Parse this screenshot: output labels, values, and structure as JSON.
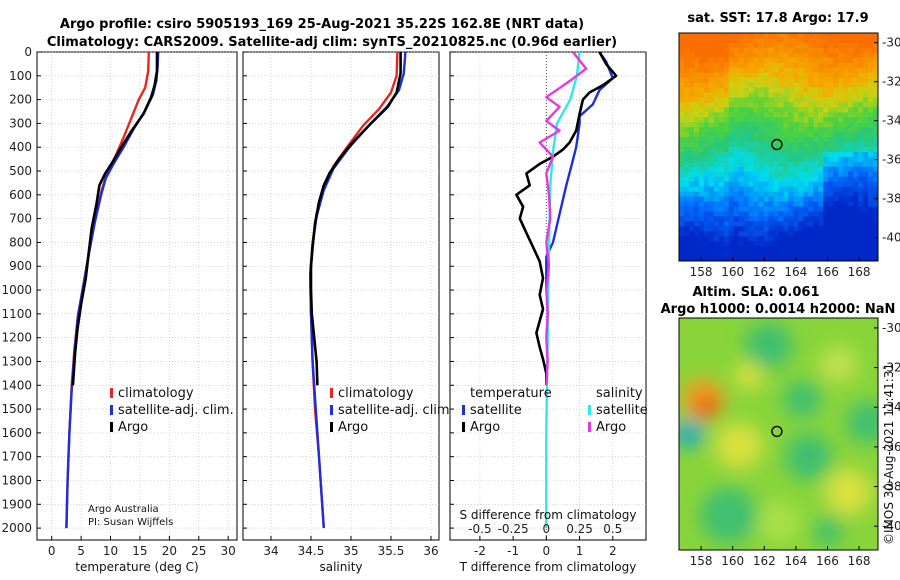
{
  "title_line1": "Argo profile: csiro 5905193_169 25-Aug-2021 35.22S 162.8E (NRT data)",
  "title_line2": "Climatology: CARS2009. Satellite-adj clim: synTS_20210825.nc (0.96d earlier)",
  "colors": {
    "climatology": "#e8251f",
    "satellite": "#1c2fd8",
    "argo": "#000000",
    "cyan": "#2ee8e8",
    "magenta": "#e637e0",
    "grid": "#bbbbbb"
  },
  "depth_axis": {
    "ylim": [
      0,
      2050
    ],
    "ticks": [
      0,
      100,
      200,
      300,
      400,
      500,
      600,
      700,
      800,
      900,
      1000,
      1100,
      1200,
      1300,
      1400,
      1500,
      1600,
      1700,
      1800,
      1900,
      2000
    ]
  },
  "legend": {
    "climatology": "climatology",
    "satellite": "satellite-adj. clim.",
    "argo": "Argo"
  },
  "credit": {
    "line1": "Argo Australia",
    "line2": "PI: Susan Wijffels"
  },
  "diff_legend": {
    "temperature_header": "temperature",
    "salinity_header": "salinity",
    "satellite": "satellite",
    "argo": "Argo",
    "s_diff_label": "S difference from climatology"
  },
  "chart_data": [
    {
      "type": "line",
      "id": "temperature",
      "xlabel": "temperature (deg C)",
      "xlim": [
        -2.5,
        31.5
      ],
      "xticks": [
        0,
        5,
        10,
        15,
        20,
        25,
        30
      ],
      "series": [
        {
          "name": "climatology",
          "color": "red",
          "points": [
            [
              16.5,
              0
            ],
            [
              16.4,
              80
            ],
            [
              15.9,
              150
            ],
            [
              14.8,
              200
            ],
            [
              13.5,
              280
            ],
            [
              12.2,
              360
            ],
            [
              10.8,
              440
            ],
            [
              9.4,
              510
            ],
            [
              8.5,
              580
            ],
            [
              7.4,
              700
            ],
            [
              6.4,
              830
            ],
            [
              5.5,
              960
            ],
            [
              4.5,
              1100
            ],
            [
              3.9,
              1240
            ],
            [
              3.4,
              1400
            ],
            [
              3.0,
              1600
            ],
            [
              2.7,
              1800
            ],
            [
              2.5,
              2000
            ]
          ]
        },
        {
          "name": "satellite-adj. clim.",
          "color": "blue",
          "points": [
            [
              18.1,
              0
            ],
            [
              18.0,
              60
            ],
            [
              17.8,
              120
            ],
            [
              17.2,
              180
            ],
            [
              15.8,
              250
            ],
            [
              14.0,
              320
            ],
            [
              12.2,
              400
            ],
            [
              10.5,
              470
            ],
            [
              9.2,
              530
            ],
            [
              8.4,
              600
            ],
            [
              7.3,
              720
            ],
            [
              6.3,
              850
            ],
            [
              5.4,
              980
            ],
            [
              4.4,
              1120
            ],
            [
              3.9,
              1260
            ],
            [
              3.4,
              1420
            ],
            [
              3.0,
              1600
            ],
            [
              2.7,
              1800
            ],
            [
              2.5,
              2000
            ]
          ]
        },
        {
          "name": "Argo",
          "color": "black",
          "points": [
            [
              17.9,
              0
            ],
            [
              17.9,
              80
            ],
            [
              17.5,
              140
            ],
            [
              16.9,
              190
            ],
            [
              15.6,
              260
            ],
            [
              13.6,
              330
            ],
            [
              11.6,
              410
            ],
            [
              10.4,
              460
            ],
            [
              9.1,
              510
            ],
            [
              8.1,
              560
            ],
            [
              7.6,
              640
            ],
            [
              6.8,
              740
            ],
            [
              6.3,
              840
            ],
            [
              5.8,
              950
            ],
            [
              5.0,
              1060
            ],
            [
              4.4,
              1160
            ],
            [
              4.0,
              1260
            ],
            [
              3.6,
              1400
            ]
          ]
        }
      ]
    },
    {
      "type": "line",
      "id": "salinity",
      "xlabel": "salinity",
      "xlim": [
        33.65,
        36.1
      ],
      "xticks": [
        34,
        34.5,
        35,
        35.5,
        36
      ],
      "series": [
        {
          "name": "climatology",
          "color": "red",
          "points": [
            [
              35.58,
              0
            ],
            [
              35.57,
              100
            ],
            [
              35.5,
              170
            ],
            [
              35.35,
              240
            ],
            [
              35.15,
              310
            ],
            [
              34.95,
              400
            ],
            [
              34.78,
              480
            ],
            [
              34.66,
              570
            ],
            [
              34.57,
              680
            ],
            [
              34.52,
              800
            ],
            [
              34.49,
              930
            ],
            [
              34.5,
              1100
            ],
            [
              34.52,
              1300
            ],
            [
              34.55,
              1500
            ],
            [
              34.6,
              1700
            ],
            [
              34.63,
              1850
            ],
            [
              34.66,
              2000
            ]
          ]
        },
        {
          "name": "satellite-adj. clim.",
          "color": "blue",
          "points": [
            [
              35.68,
              0
            ],
            [
              35.66,
              90
            ],
            [
              35.6,
              160
            ],
            [
              35.45,
              230
            ],
            [
              35.22,
              310
            ],
            [
              34.98,
              400
            ],
            [
              34.78,
              490
            ],
            [
              34.66,
              580
            ],
            [
              34.57,
              690
            ],
            [
              34.52,
              810
            ],
            [
              34.49,
              940
            ],
            [
              34.5,
              1100
            ],
            [
              34.52,
              1300
            ],
            [
              34.56,
              1500
            ],
            [
              34.6,
              1700
            ],
            [
              34.63,
              1850
            ],
            [
              34.66,
              2000
            ]
          ]
        },
        {
          "name": "Argo",
          "color": "black",
          "points": [
            [
              35.62,
              0
            ],
            [
              35.62,
              90
            ],
            [
              35.57,
              170
            ],
            [
              35.46,
              230
            ],
            [
              35.25,
              300
            ],
            [
              35.02,
              380
            ],
            [
              34.85,
              450
            ],
            [
              34.73,
              510
            ],
            [
              34.66,
              560
            ],
            [
              34.6,
              630
            ],
            [
              34.55,
              720
            ],
            [
              34.52,
              820
            ],
            [
              34.5,
              900
            ],
            [
              34.5,
              1000
            ],
            [
              34.51,
              1100
            ],
            [
              34.54,
              1200
            ],
            [
              34.57,
              1300
            ],
            [
              34.58,
              1400
            ]
          ]
        }
      ]
    },
    {
      "type": "line",
      "id": "difference",
      "xlabel": "T difference from climatology",
      "xlim": [
        -2.9,
        3.0
      ],
      "xticks": [
        -2,
        -1,
        0,
        1,
        2
      ],
      "s_ticks": [
        {
          "label": "-0.5",
          "value": -0.5
        },
        {
          "label": "-0.25",
          "value": -0.25
        },
        {
          "label": "0",
          "value": 0
        },
        {
          "label": "0.25",
          "value": 0.25
        },
        {
          "label": "0.5",
          "value": 0.5
        }
      ],
      "s_scale": 4,
      "series": [
        {
          "name": "temperature satellite",
          "color": "blue",
          "points": [
            [
              1.6,
              0
            ],
            [
              1.8,
              40
            ],
            [
              2.0,
              110
            ],
            [
              1.6,
              160
            ],
            [
              1.4,
              220
            ],
            [
              1.0,
              270
            ],
            [
              1.0,
              300
            ],
            [
              0.9,
              400
            ],
            [
              0.75,
              480
            ],
            [
              0.6,
              560
            ],
            [
              0.4,
              680
            ],
            [
              0.2,
              800
            ],
            [
              0.0,
              860
            ],
            [
              0.0,
              1000
            ]
          ]
        },
        {
          "name": "temperature Argo",
          "color": "black",
          "points": [
            [
              1.6,
              0
            ],
            [
              1.8,
              50
            ],
            [
              2.1,
              100
            ],
            [
              1.7,
              140
            ],
            [
              1.3,
              170
            ],
            [
              1.1,
              200
            ],
            [
              1.0,
              260
            ],
            [
              0.9,
              330
            ],
            [
              0.7,
              380
            ],
            [
              0.5,
              410
            ],
            [
              0.2,
              440
            ],
            [
              -0.2,
              470
            ],
            [
              -0.6,
              510
            ],
            [
              -0.5,
              560
            ],
            [
              -0.9,
              600
            ],
            [
              -0.7,
              650
            ],
            [
              -0.8,
              700
            ],
            [
              -0.6,
              760
            ],
            [
              -0.4,
              820
            ],
            [
              -0.2,
              880
            ],
            [
              -0.1,
              950
            ],
            [
              -0.2,
              1020
            ],
            [
              -0.1,
              1080
            ],
            [
              -0.2,
              1130
            ],
            [
              -0.3,
              1180
            ],
            [
              -0.2,
              1240
            ],
            [
              -0.1,
              1290
            ],
            [
              0.0,
              1350
            ],
            [
              0.0,
              1400
            ]
          ]
        },
        {
          "name": "salinity satellite",
          "color": "cyan",
          "points": [
            [
              0.25,
              0
            ],
            [
              0.23,
              100
            ],
            [
              0.18,
              200
            ],
            [
              0.08,
              300
            ],
            [
              0.05,
              420
            ],
            [
              0.03,
              560
            ],
            [
              0.02,
              800
            ],
            [
              0.01,
              1200
            ],
            [
              0.0,
              1600
            ],
            [
              0.0,
              2000
            ]
          ]
        },
        {
          "name": "salinity Argo",
          "color": "magenta",
          "points": [
            [
              0.2,
              0
            ],
            [
              0.3,
              70
            ],
            [
              0.18,
              120
            ],
            [
              0.0,
              190
            ],
            [
              0.1,
              230
            ],
            [
              0.0,
              290
            ],
            [
              0.1,
              330
            ],
            [
              -0.05,
              380
            ],
            [
              0.05,
              440
            ],
            [
              0.0,
              510
            ],
            [
              0.02,
              600
            ],
            [
              0.03,
              700
            ],
            [
              0.0,
              800
            ],
            [
              0.02,
              900
            ],
            [
              0.0,
              1000
            ],
            [
              0.01,
              1100
            ],
            [
              0.0,
              1200
            ],
            [
              0.01,
              1300
            ],
            [
              0.0,
              1400
            ]
          ]
        }
      ]
    },
    {
      "type": "heatmap",
      "id": "sst-map",
      "title": "sat. SST: 17.8 Argo: 17.9",
      "xlim": [
        156.6,
        169.2
      ],
      "ylim": [
        -41.2,
        -29.5
      ],
      "xticks": [
        158,
        160,
        162,
        164,
        166,
        168
      ],
      "yticks": [
        -30,
        -32,
        -34,
        -36,
        -38,
        -40
      ],
      "marker": [
        162.8,
        -35.22
      ]
    },
    {
      "type": "heatmap",
      "id": "sla-map",
      "title": "Altim. SLA: 0.061",
      "subtitle": "Argo h1000: 0.0014 h2000: NaN",
      "xlim": [
        156.6,
        169.2
      ],
      "ylim": [
        -41.2,
        -29.5
      ],
      "xticks": [
        158,
        160,
        162,
        164,
        166,
        168
      ],
      "yticks": [
        -30,
        -32,
        -34,
        -36,
        -38,
        -40
      ],
      "marker": [
        162.8,
        -35.22
      ]
    }
  ],
  "watermark": "©IMOS 30-Aug-2021 11:41:31"
}
